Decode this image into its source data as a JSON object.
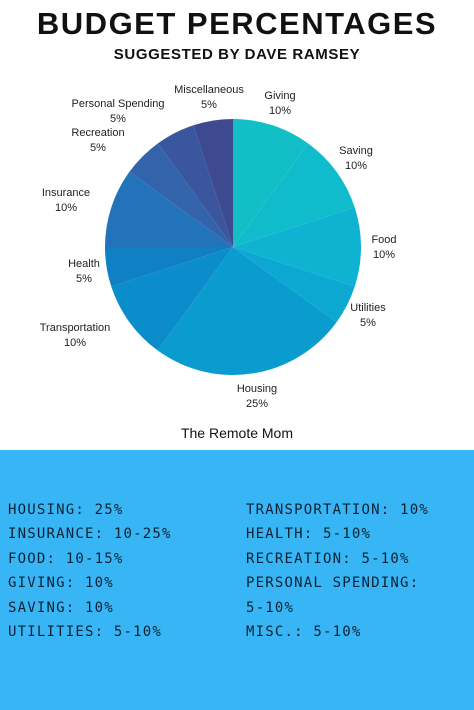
{
  "header": {
    "title": "BUDGET PERCENTAGES",
    "subtitle": "SUGGESTED BY DAVE RAMSEY"
  },
  "chart_data": {
    "type": "pie",
    "slices": [
      {
        "label": "Giving",
        "value": 10,
        "value_label": "10%",
        "color": "#12bfc6"
      },
      {
        "label": "Saving",
        "value": 10,
        "value_label": "10%",
        "color": "#10bccb"
      },
      {
        "label": "Food",
        "value": 10,
        "value_label": "10%",
        "color": "#0eb3d1"
      },
      {
        "label": "Utilities",
        "value": 5,
        "value_label": "5%",
        "color": "#0ca8d1"
      },
      {
        "label": "Housing",
        "value": 25,
        "value_label": "25%",
        "color": "#0a9ccf"
      },
      {
        "label": "Transportation",
        "value": 10,
        "value_label": "10%",
        "color": "#0b8dcc"
      },
      {
        "label": "Health",
        "value": 5,
        "value_label": "5%",
        "color": "#0f80c4"
      },
      {
        "label": "Insurance",
        "value": 10,
        "value_label": "10%",
        "color": "#2273ba"
      },
      {
        "label": "Recreation",
        "value": 5,
        "value_label": "5%",
        "color": "#3364ab"
      },
      {
        "label": "Personal Spending",
        "value": 5,
        "value_label": "5%",
        "color": "#3a569e"
      },
      {
        "label": "Miscellaneous",
        "value": 5,
        "value_label": "5%",
        "color": "#3e4a90"
      }
    ]
  },
  "credit": "The Remote Mom",
  "guidelines": {
    "left": [
      "HOUSING: 25%",
      "INSURANCE: 10-25%",
      "FOOD: 10-15%",
      "GIVING: 10%",
      "SAVING: 10%",
      "UTILITIES: 5-10%"
    ],
    "right": [
      "TRANSPORTATION: 10%",
      "HEALTH: 5-10%",
      "RECREATION: 5-10%",
      "PERSONAL SPENDING:",
      "5-10%",
      "MISC.: 5-10%"
    ]
  }
}
